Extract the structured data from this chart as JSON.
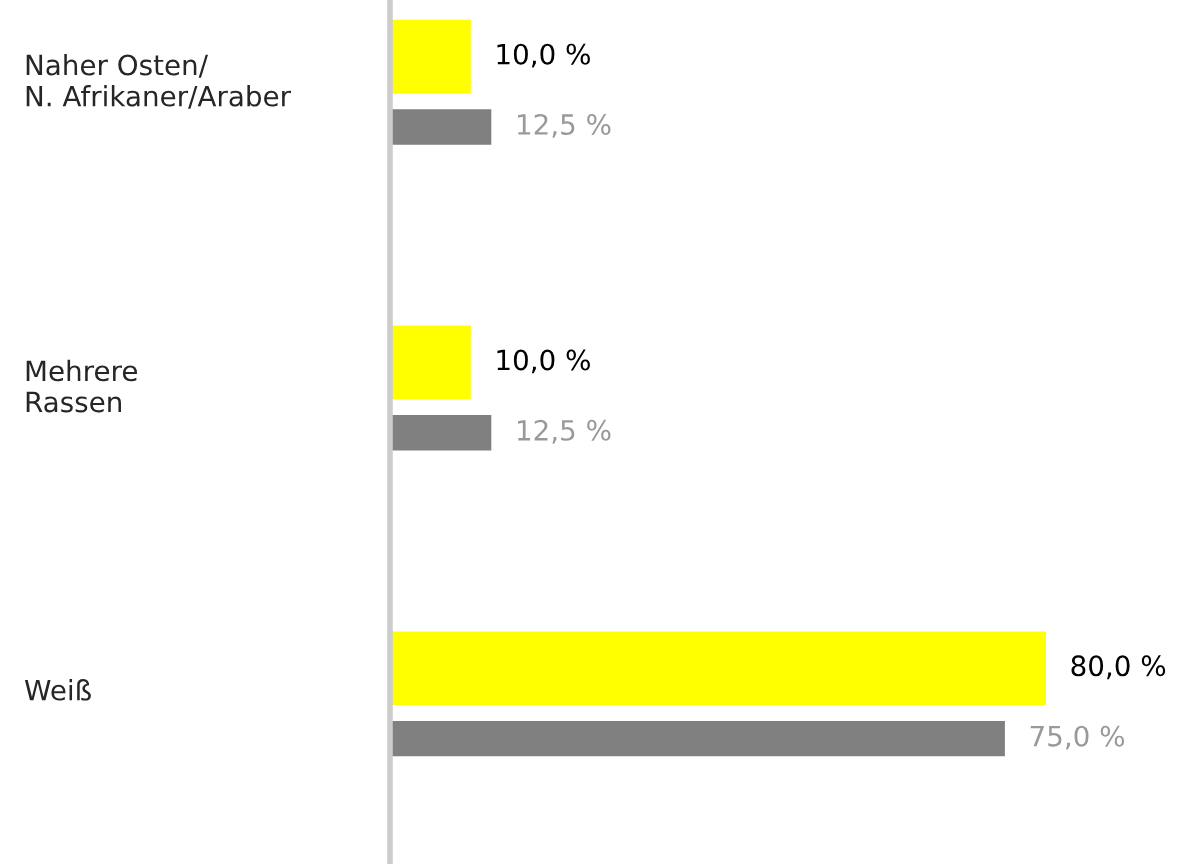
{
  "chart_data": {
    "type": "bar",
    "orientation": "horizontal",
    "tick_labels": "y",
    "categories": [
      "Naher Osten/\nN. Afrikaner/Araber",
      "Mehrere\nRassen",
      "Weiß"
    ],
    "series": [
      {
        "color": "#ffff00",
        "values": [
          10.0,
          10.0,
          80.0
        ],
        "value_labels": [
          "10,0 %",
          "10,0 %",
          "80,0 %"
        ]
      },
      {
        "color": "#808080",
        "values": [
          12.5,
          12.5,
          75.0
        ],
        "value_labels": [
          "12,5 %",
          "12,5 %",
          "75,0 %"
        ]
      }
    ]
  }
}
